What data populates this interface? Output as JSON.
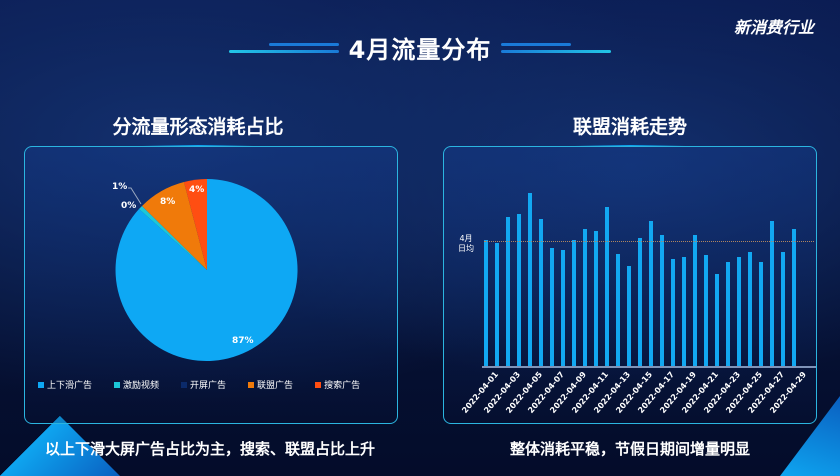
{
  "header": {
    "title": "4月流量分布",
    "logo": "新消费行业"
  },
  "left": {
    "section_title": "分流量形态消耗占比",
    "caption": "以上下滑大屏广告占比为主，搜索、联盟占比上升"
  },
  "right": {
    "section_title": "联盟消耗走势",
    "caption": "整体消耗平稳，节假日期间增量明显",
    "avg_label_1": "4月",
    "avg_label_2": "日均"
  },
  "colors": {
    "swipe": "#0ea8f4",
    "incentive": "#1cc7d8",
    "splash": "#0b2a6a",
    "union": "#f07a0a",
    "search": "#ff4e12"
  },
  "chart_data": [
    {
      "type": "pie",
      "title": "分流量形态消耗占比",
      "labels": [
        "上下滑广告",
        "激励视频",
        "开屏广告",
        "联盟广告",
        "搜索广告"
      ],
      "values": [
        87,
        1,
        0,
        8,
        4
      ],
      "value_labels": [
        "87%",
        "1%",
        "0%",
        "8%",
        "4%"
      ],
      "legend_position": "bottom"
    },
    {
      "type": "bar",
      "title": "联盟消耗走势",
      "categories": [
        "2022-04-01",
        "2022-04-02",
        "2022-04-03",
        "2022-04-04",
        "2022-04-05",
        "2022-04-06",
        "2022-04-07",
        "2022-04-08",
        "2022-04-09",
        "2022-04-10",
        "2022-04-11",
        "2022-04-12",
        "2022-04-13",
        "2022-04-14",
        "2022-04-15",
        "2022-04-16",
        "2022-04-17",
        "2022-04-18",
        "2022-04-19",
        "2022-04-20",
        "2022-04-21",
        "2022-04-22",
        "2022-04-23",
        "2022-04-24",
        "2022-04-25",
        "2022-04-26",
        "2022-04-27",
        "2022-04-28",
        "2022-04-29"
      ],
      "tick_labels": [
        "2022-04-01",
        "2022-04-03",
        "2022-04-05",
        "2022-04-07",
        "2022-04-09",
        "2022-04-11",
        "2022-04-13",
        "2022-04-15",
        "2022-04-17",
        "2022-04-19",
        "2022-04-21",
        "2022-04-23",
        "2022-04-25",
        "2022-04-27",
        "2022-04-29"
      ],
      "values": [
        73,
        71,
        86,
        88,
        100,
        85,
        68,
        67,
        73,
        79,
        78,
        92,
        65,
        58,
        74,
        84,
        76,
        62,
        63,
        76,
        64,
        53,
        60,
        63,
        66,
        60,
        84,
        66,
        79
      ],
      "average": 72,
      "annotation": "4月日均",
      "xlabel": "",
      "ylabel": "",
      "grid": false
    }
  ]
}
